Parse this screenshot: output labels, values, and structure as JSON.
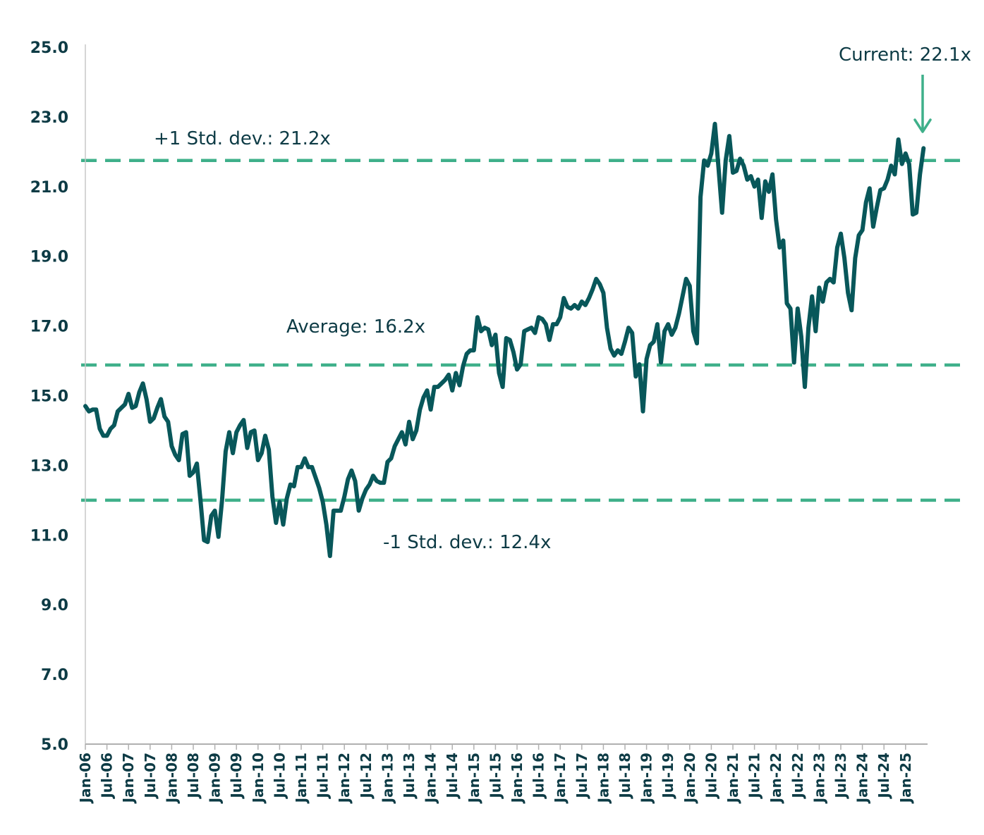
{
  "chart_data": {
    "type": "line",
    "title": "",
    "xlabel": "",
    "ylabel": "",
    "ylim": [
      5.0,
      25.0
    ],
    "yticks": [
      "5.0",
      "7.0",
      "9.0",
      "11.0",
      "13.0",
      "15.0",
      "17.0",
      "19.0",
      "21.0",
      "23.0",
      "25.0"
    ],
    "xticks": [
      "Jan-06",
      "Jul-06",
      "Jan-07",
      "Jul-07",
      "Jan-08",
      "Jul-08",
      "Jan-09",
      "Jul-09",
      "Jan-10",
      "Jul-10",
      "Jan-11",
      "Jul-11",
      "Jan-12",
      "Jul-12",
      "Jan-13",
      "Jul-13",
      "Jan-14",
      "Jul-14",
      "Jan-15",
      "Jul-15",
      "Jan-16",
      "Jul-16",
      "Jan-17",
      "Jul-17",
      "Jan-18",
      "Jul-18",
      "Jan-19",
      "Jul-19",
      "Jan-20",
      "Jul-20",
      "Jan-21",
      "Jul-21",
      "Jan-22",
      "Jul-22",
      "Jan-23",
      "Jul-23",
      "Jan-24",
      "Jul-24",
      "Jan-25"
    ],
    "grid": false,
    "legend": "none",
    "colors": {
      "line": "#08575a",
      "reference": "#3fb08a",
      "text": "#0d3b45"
    },
    "series": [
      {
        "points": [
          [
            "Jan-06",
            14.7
          ],
          [
            "Feb-06",
            14.55
          ],
          [
            "Mar-06",
            14.6
          ],
          [
            "Apr-06",
            14.6
          ],
          [
            "May-06",
            14.05
          ],
          [
            "Jun-06",
            13.85
          ],
          [
            "Jul-06",
            13.85
          ],
          [
            "Aug-06",
            14.05
          ],
          [
            "Sep-06",
            14.15
          ],
          [
            "Oct-06",
            14.55
          ],
          [
            "Nov-06",
            14.65
          ],
          [
            "Dec-06",
            14.75
          ],
          [
            "Jan-07",
            15.05
          ],
          [
            "Feb-07",
            14.65
          ],
          [
            "Mar-07",
            14.7
          ],
          [
            "Apr-07",
            15.1
          ],
          [
            "May-07",
            15.35
          ],
          [
            "Jun-07",
            14.9
          ],
          [
            "Jul-07",
            14.25
          ],
          [
            "Aug-07",
            14.35
          ],
          [
            "Sep-07",
            14.65
          ],
          [
            "Oct-07",
            14.9
          ],
          [
            "Nov-07",
            14.4
          ],
          [
            "Dec-07",
            14.25
          ],
          [
            "Jan-08",
            13.55
          ],
          [
            "Feb-08",
            13.3
          ],
          [
            "Mar-08",
            13.15
          ],
          [
            "Apr-08",
            13.9
          ],
          [
            "May-08",
            13.95
          ],
          [
            "Jun-08",
            12.7
          ],
          [
            "Jul-08",
            12.8
          ],
          [
            "Aug-08",
            13.05
          ],
          [
            "Sep-08",
            12.0
          ],
          [
            "Oct-08",
            10.85
          ],
          [
            "Nov-08",
            10.8
          ],
          [
            "Dec-08",
            11.55
          ],
          [
            "Jan-09",
            11.7
          ],
          [
            "Feb-09",
            10.95
          ],
          [
            "Mar-09",
            12.0
          ],
          [
            "Apr-09",
            13.4
          ],
          [
            "May-09",
            13.95
          ],
          [
            "Jun-09",
            13.35
          ],
          [
            "Jul-09",
            13.95
          ],
          [
            "Aug-09",
            14.15
          ],
          [
            "Sep-09",
            14.3
          ],
          [
            "Oct-09",
            13.5
          ],
          [
            "Nov-09",
            13.95
          ],
          [
            "Dec-09",
            14.0
          ],
          [
            "Jan-10",
            13.15
          ],
          [
            "Feb-10",
            13.35
          ],
          [
            "Mar-10",
            13.85
          ],
          [
            "Apr-10",
            13.45
          ],
          [
            "May-10",
            12.1
          ],
          [
            "Jun-10",
            11.35
          ],
          [
            "Jul-10",
            11.95
          ],
          [
            "Aug-10",
            11.3
          ],
          [
            "Sep-10",
            12.05
          ],
          [
            "Oct-10",
            12.45
          ],
          [
            "Nov-10",
            12.4
          ],
          [
            "Dec-10",
            12.95
          ],
          [
            "Jan-11",
            12.95
          ],
          [
            "Feb-11",
            13.2
          ],
          [
            "Mar-11",
            12.95
          ],
          [
            "Apr-11",
            12.95
          ],
          [
            "May-11",
            12.65
          ],
          [
            "Jun-11",
            12.35
          ],
          [
            "Jul-11",
            11.95
          ],
          [
            "Aug-11",
            11.3
          ],
          [
            "Sep-11",
            10.4
          ],
          [
            "Oct-11",
            11.7
          ],
          [
            "Nov-11",
            11.7
          ],
          [
            "Dec-11",
            11.7
          ],
          [
            "Jan-12",
            12.1
          ],
          [
            "Feb-12",
            12.6
          ],
          [
            "Mar-12",
            12.85
          ],
          [
            "Apr-12",
            12.55
          ],
          [
            "May-12",
            11.7
          ],
          [
            "Jun-12",
            12.05
          ],
          [
            "Jul-12",
            12.3
          ],
          [
            "Aug-12",
            12.45
          ],
          [
            "Sep-12",
            12.7
          ],
          [
            "Oct-12",
            12.55
          ],
          [
            "Nov-12",
            12.5
          ],
          [
            "Dec-12",
            12.5
          ],
          [
            "Jan-13",
            13.1
          ],
          [
            "Feb-13",
            13.2
          ],
          [
            "Mar-13",
            13.55
          ],
          [
            "Apr-13",
            13.75
          ],
          [
            "May-13",
            13.95
          ],
          [
            "Jun-13",
            13.6
          ],
          [
            "Jul-13",
            14.25
          ],
          [
            "Aug-13",
            13.75
          ],
          [
            "Sep-13",
            14.0
          ],
          [
            "Oct-13",
            14.6
          ],
          [
            "Nov-13",
            14.95
          ],
          [
            "Dec-13",
            15.15
          ],
          [
            "Jan-14",
            14.6
          ],
          [
            "Feb-14",
            15.25
          ],
          [
            "Mar-14",
            15.25
          ],
          [
            "Apr-14",
            15.35
          ],
          [
            "May-14",
            15.45
          ],
          [
            "Jun-14",
            15.6
          ],
          [
            "Jul-14",
            15.15
          ],
          [
            "Aug-14",
            15.65
          ],
          [
            "Sep-14",
            15.3
          ],
          [
            "Oct-14",
            15.85
          ],
          [
            "Nov-14",
            16.2
          ],
          [
            "Dec-14",
            16.3
          ],
          [
            "Jan-15",
            16.3
          ],
          [
            "Feb-15",
            17.25
          ],
          [
            "Mar-15",
            16.85
          ],
          [
            "Apr-15",
            16.95
          ],
          [
            "May-15",
            16.9
          ],
          [
            "Jun-15",
            16.45
          ],
          [
            "Jul-15",
            16.75
          ],
          [
            "Aug-15",
            15.65
          ],
          [
            "Sep-15",
            15.25
          ],
          [
            "Oct-15",
            16.65
          ],
          [
            "Nov-15",
            16.6
          ],
          [
            "Dec-15",
            16.25
          ],
          [
            "Jan-16",
            15.75
          ],
          [
            "Feb-16",
            15.9
          ],
          [
            "Mar-16",
            16.85
          ],
          [
            "Apr-16",
            16.9
          ],
          [
            "May-16",
            16.95
          ],
          [
            "Jun-16",
            16.8
          ],
          [
            "Jul-16",
            17.25
          ],
          [
            "Aug-16",
            17.2
          ],
          [
            "Sep-16",
            17.05
          ],
          [
            "Oct-16",
            16.6
          ],
          [
            "Nov-16",
            17.05
          ],
          [
            "Dec-16",
            17.05
          ],
          [
            "Jan-17",
            17.25
          ],
          [
            "Feb-17",
            17.8
          ],
          [
            "Mar-17",
            17.55
          ],
          [
            "Apr-17",
            17.5
          ],
          [
            "May-17",
            17.6
          ],
          [
            "Jun-17",
            17.5
          ],
          [
            "Jul-17",
            17.7
          ],
          [
            "Aug-17",
            17.6
          ],
          [
            "Sep-17",
            17.8
          ],
          [
            "Oct-17",
            18.05
          ],
          [
            "Nov-17",
            18.35
          ],
          [
            "Dec-17",
            18.2
          ],
          [
            "Jan-18",
            17.95
          ],
          [
            "Feb-18",
            16.95
          ],
          [
            "Mar-18",
            16.35
          ],
          [
            "Apr-18",
            16.15
          ],
          [
            "May-18",
            16.3
          ],
          [
            "Jun-18",
            16.2
          ],
          [
            "Jul-18",
            16.55
          ],
          [
            "Aug-18",
            16.95
          ],
          [
            "Sep-18",
            16.8
          ],
          [
            "Oct-18",
            15.55
          ],
          [
            "Nov-18",
            15.9
          ],
          [
            "Dec-18",
            14.55
          ],
          [
            "Jan-19",
            16.05
          ],
          [
            "Feb-19",
            16.45
          ],
          [
            "Mar-19",
            16.55
          ],
          [
            "Apr-19",
            17.05
          ],
          [
            "May-19",
            15.95
          ],
          [
            "Jun-19",
            16.85
          ],
          [
            "Jul-19",
            17.05
          ],
          [
            "Aug-19",
            16.75
          ],
          [
            "Sep-19",
            16.95
          ],
          [
            "Oct-19",
            17.35
          ],
          [
            "Nov-19",
            17.85
          ],
          [
            "Dec-19",
            18.35
          ],
          [
            "Jan-20",
            18.15
          ],
          [
            "Feb-20",
            16.85
          ],
          [
            "Mar-20",
            16.5
          ],
          [
            "Apr-20",
            20.7
          ],
          [
            "May-20",
            21.75
          ],
          [
            "Jun-20",
            21.6
          ],
          [
            "Jul-20",
            21.95
          ],
          [
            "Aug-20",
            22.8
          ],
          [
            "Sep-20",
            21.55
          ],
          [
            "Oct-20",
            20.25
          ],
          [
            "Nov-20",
            21.75
          ],
          [
            "Dec-20",
            22.45
          ],
          [
            "Jan-21",
            21.4
          ],
          [
            "Feb-21",
            21.45
          ],
          [
            "Mar-21",
            21.8
          ],
          [
            "Apr-21",
            21.6
          ],
          [
            "May-21",
            21.2
          ],
          [
            "Jun-21",
            21.3
          ],
          [
            "Jul-21",
            21.0
          ],
          [
            "Aug-21",
            21.2
          ],
          [
            "Sep-21",
            20.1
          ],
          [
            "Oct-21",
            21.15
          ],
          [
            "Nov-21",
            20.85
          ],
          [
            "Dec-21",
            21.35
          ],
          [
            "Jan-22",
            20.05
          ],
          [
            "Feb-22",
            19.25
          ],
          [
            "Mar-22",
            19.45
          ],
          [
            "Apr-22",
            17.65
          ],
          [
            "May-22",
            17.5
          ],
          [
            "Jun-22",
            15.95
          ],
          [
            "Jul-22",
            17.5
          ],
          [
            "Aug-22",
            16.7
          ],
          [
            "Sep-22",
            15.25
          ],
          [
            "Oct-22",
            16.95
          ],
          [
            "Nov-22",
            17.85
          ],
          [
            "Dec-22",
            16.85
          ],
          [
            "Jan-23",
            18.1
          ],
          [
            "Feb-23",
            17.7
          ],
          [
            "Mar-23",
            18.25
          ],
          [
            "Apr-23",
            18.35
          ],
          [
            "May-23",
            18.25
          ],
          [
            "Jun-23",
            19.25
          ],
          [
            "Jul-23",
            19.65
          ],
          [
            "Aug-23",
            18.95
          ],
          [
            "Sep-23",
            17.95
          ],
          [
            "Oct-23",
            17.45
          ],
          [
            "Nov-23",
            18.95
          ],
          [
            "Dec-23",
            19.6
          ],
          [
            "Jan-24",
            19.75
          ],
          [
            "Feb-24",
            20.55
          ],
          [
            "Mar-24",
            20.95
          ],
          [
            "Apr-24",
            19.85
          ],
          [
            "May-24",
            20.4
          ],
          [
            "Jun-24",
            20.9
          ],
          [
            "Jul-24",
            20.95
          ],
          [
            "Aug-24",
            21.2
          ],
          [
            "Sep-24",
            21.6
          ],
          [
            "Oct-24",
            21.35
          ],
          [
            "Nov-24",
            22.35
          ],
          [
            "Dec-24",
            21.65
          ],
          [
            "Jan-25",
            21.95
          ],
          [
            "Feb-25",
            21.65
          ],
          [
            "Mar-25",
            20.2
          ],
          [
            "Apr-25",
            20.25
          ],
          [
            "May-25",
            21.35
          ],
          [
            "Jun-25",
            22.1
          ]
        ]
      }
    ],
    "reference_lines": [
      {
        "label": "+1 Std. dev.: 21.2x",
        "value": 21.2
      },
      {
        "label": "Average: 16.2x",
        "value": 16.2
      },
      {
        "label": "-1 Std. dev.: 12.4x",
        "value": 12.4
      }
    ],
    "annotations": [
      {
        "text": "Current: 22.1x",
        "target": "Jun-25",
        "arrow": true
      }
    ]
  }
}
